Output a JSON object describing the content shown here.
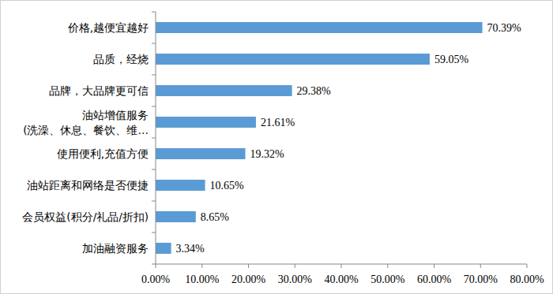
{
  "chart_data": {
    "type": "bar",
    "orientation": "horizontal",
    "categories": [
      "价格,越便宜越好",
      "品质，经烧",
      "品牌，大品牌更可信",
      "油站增值服务\n(洗澡、休息、餐饮、维…",
      "使用便利,充值方便",
      "油站距离和网络是否便捷",
      "会员权益(积分/礼品/折扣)",
      "加油融资服务"
    ],
    "values": [
      70.39,
      59.05,
      29.38,
      21.61,
      19.32,
      10.65,
      8.65,
      3.34
    ],
    "value_labels": [
      "70.39%",
      "59.05%",
      "29.38%",
      "21.61%",
      "19.32%",
      "10.65%",
      "8.65%",
      "3.34%"
    ],
    "color": "#5b9bd5",
    "xlim": [
      0,
      80
    ],
    "xticks": [
      {
        "value": 0,
        "label": "0.00%"
      },
      {
        "value": 10,
        "label": "10.00%"
      },
      {
        "value": 20,
        "label": "20.00%"
      },
      {
        "value": 30,
        "label": "30.00%"
      },
      {
        "value": 40,
        "label": "40.00%"
      },
      {
        "value": 50,
        "label": "50.00%"
      },
      {
        "value": 60,
        "label": "60.00%"
      },
      {
        "value": 70,
        "label": "70.00%"
      },
      {
        "value": 80,
        "label": "80.00%"
      }
    ],
    "grid": false,
    "data_labels": true
  }
}
